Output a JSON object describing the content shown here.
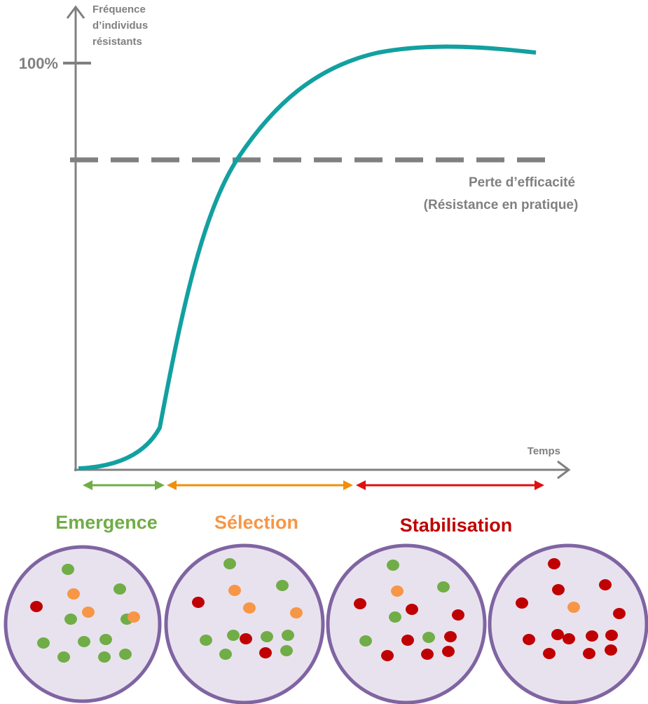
{
  "axis": {
    "y_label": [
      "Fréquence",
      "d’individus",
      "résistants"
    ],
    "y_mark": "100%",
    "x_label": "Temps"
  },
  "threshold": {
    "label": [
      "Perte d’efficacité",
      "(Résistance en pratique)"
    ]
  },
  "phases": [
    {
      "label": "Emergence"
    },
    {
      "label": "Sélection"
    },
    {
      "label": "Stabilisation"
    }
  ]
}
